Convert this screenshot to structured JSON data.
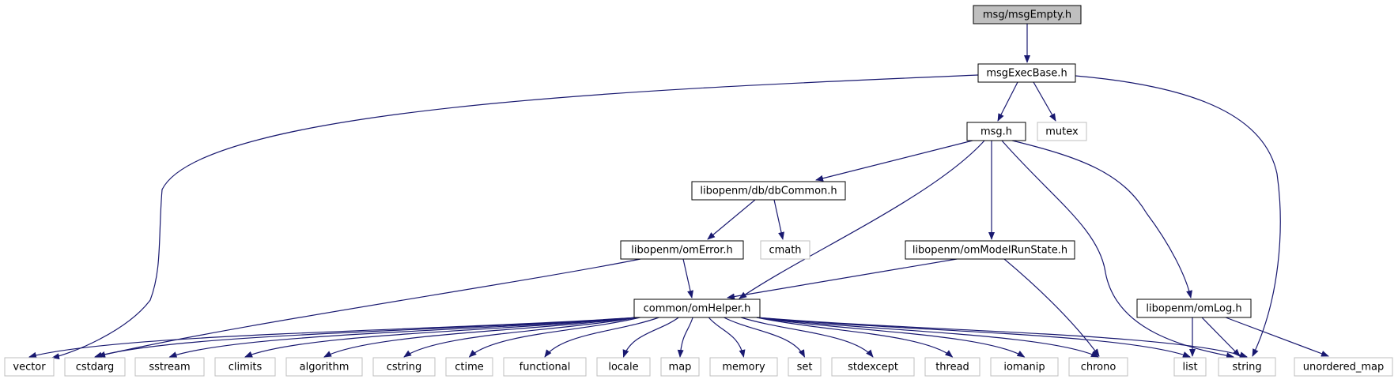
{
  "colors": {
    "edge": "#191970",
    "local_border": "#000000",
    "system_border": "#bfbfbf",
    "root_fill": "#bfbfbf",
    "node_fill": "#ffffff"
  },
  "nodes": {
    "msgEmpty": "msg/msgEmpty.h",
    "msgExecBase": "msgExecBase.h",
    "msg": "msg.h",
    "mutex": "mutex",
    "dbCommon": "libopenm/db/dbCommon.h",
    "cmath": "cmath",
    "omError": "libopenm/omError.h",
    "omModelRunState": "libopenm/omModelRunState.h",
    "omHelper": "common/omHelper.h",
    "omLog": "libopenm/omLog.h",
    "vector": "vector",
    "cstdarg": "cstdarg",
    "sstream": "sstream",
    "climits": "climits",
    "algorithm": "algorithm",
    "cstring": "cstring",
    "ctime": "ctime",
    "functional": "functional",
    "locale": "locale",
    "map": "map",
    "memory": "memory",
    "set": "set",
    "stdexcept": "stdexcept",
    "thread": "thread",
    "iomanip": "iomanip",
    "chrono": "chrono",
    "list": "list",
    "string": "string",
    "unordered_map": "unordered_map"
  }
}
